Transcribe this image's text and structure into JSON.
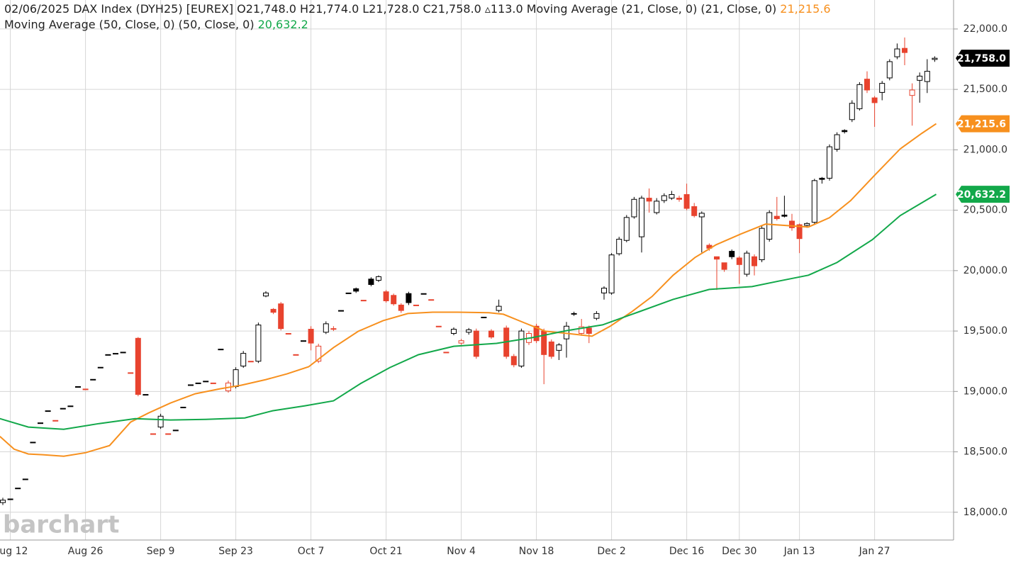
{
  "chart_data": {
    "type": "candlestick",
    "header": {
      "title": "02/06/2025 DAX Index (DYH25) [EUREX]",
      "open": "O21,748.0",
      "high": "H21,774.0",
      "low": "L21,728.0",
      "close": "C21,758.0",
      "change": "▵113.0"
    },
    "last_price_label": "21,758.0",
    "watermark": "barchart",
    "categories": [
      null,
      "Aug 12",
      null,
      null,
      null,
      null,
      null,
      null,
      null,
      null,
      null,
      "Aug 26",
      null,
      null,
      null,
      null,
      null,
      null,
      null,
      null,
      null,
      "Sep 9",
      null,
      null,
      null,
      null,
      null,
      null,
      null,
      null,
      null,
      "Sep 23",
      null,
      null,
      null,
      null,
      null,
      null,
      null,
      null,
      null,
      "Oct 7",
      null,
      null,
      null,
      null,
      null,
      null,
      null,
      null,
      null,
      "Oct 21",
      null,
      null,
      null,
      null,
      null,
      null,
      null,
      null,
      null,
      "Nov 4",
      null,
      null,
      null,
      null,
      null,
      null,
      null,
      null,
      null,
      "Nov 18",
      null,
      null,
      null,
      null,
      null,
      null,
      null,
      null,
      null,
      "Dec 2",
      null,
      null,
      null,
      null,
      null,
      null,
      null,
      null,
      null,
      "Dec 16",
      null,
      null,
      null,
      null,
      null,
      null,
      "Dec 30",
      null,
      null,
      null,
      null,
      null,
      null,
      null,
      "Jan 13",
      null,
      null,
      null,
      null,
      null,
      null,
      null,
      null,
      null,
      "Jan 27",
      null,
      null,
      null,
      null,
      null,
      null,
      null,
      null
    ],
    "open": [
      18080,
      18110,
      18200,
      18275,
      18580,
      18740,
      18840,
      18760,
      18860,
      18880,
      19040,
      19020,
      19100,
      19200,
      19305,
      19315,
      19325,
      19155,
      19440,
      18975,
      18650,
      18705,
      18650,
      18680,
      18870,
      19055,
      19070,
      19085,
      19070,
      19350,
      19005,
      19040,
      19210,
      19250,
      19250,
      19790,
      19680,
      19725,
      19480,
      19305,
      19420,
      19515,
      19250,
      19490,
      19520,
      19670,
      19815,
      19850,
      19755,
      19930,
      19920,
      19825,
      19795,
      19715,
      19810,
      19715,
      19810,
      19760,
      19540,
      19325,
      19480,
      19400,
      19490,
      19500,
      19615,
      19500,
      19670,
      19525,
      19290,
      19210,
      19405,
      19540,
      19500,
      19410,
      19340,
      19435,
      19645,
      19480,
      19525,
      19605,
      19815,
      19815,
      20140,
      20250,
      20445,
      20280,
      20600,
      20480,
      20580,
      20600,
      20600,
      20630,
      20530,
      20445,
      20210,
      20115,
      20065,
      20160,
      20105,
      19970,
      20115,
      20090,
      20260,
      20450,
      20460,
      20410,
      20380,
      20375,
      20400,
      20765,
      20765,
      21005,
      21160,
      21250,
      21340,
      21585,
      21430,
      21475,
      21595,
      21770,
      21840,
      21450,
      21575,
      21565,
      21748
    ],
    "high": [
      18120,
      18110,
      18200,
      18275,
      18580,
      18740,
      18840,
      18760,
      18860,
      18880,
      19040,
      19020,
      19100,
      19200,
      19305,
      19315,
      19325,
      19155,
      19450,
      18975,
      18650,
      18815,
      18650,
      18680,
      18870,
      19055,
      19070,
      19085,
      19070,
      19350,
      19090,
      19200,
      19335,
      19250,
      19570,
      19830,
      19690,
      19740,
      19480,
      19305,
      19420,
      19540,
      19395,
      19580,
      19540,
      19670,
      19815,
      19860,
      19755,
      19945,
      19960,
      19840,
      19810,
      19730,
      19825,
      19715,
      19810,
      19760,
      19540,
      19325,
      19530,
      19435,
      19525,
      19520,
      19615,
      19515,
      19760,
      19545,
      19310,
      19520,
      19500,
      19560,
      19520,
      19430,
      19400,
      19575,
      19660,
      19600,
      19545,
      19665,
      19870,
      20145,
      20280,
      20460,
      20610,
      20620,
      20680,
      20600,
      20640,
      20660,
      20620,
      20720,
      20560,
      20490,
      20225,
      20110,
      20030,
      20175,
      20120,
      20165,
      20135,
      20370,
      20500,
      20610,
      20620,
      20470,
      20390,
      20400,
      20760,
      20775,
      21045,
      21145,
      21170,
      21410,
      21560,
      21650,
      21445,
      21570,
      21750,
      21880,
      21930,
      21550,
      21640,
      21750,
      21774
    ],
    "low": [
      18060,
      18110,
      18200,
      18275,
      18580,
      18740,
      18840,
      18760,
      18860,
      18880,
      19040,
      19020,
      19100,
      19200,
      19305,
      19315,
      19325,
      19155,
      18960,
      18975,
      18650,
      18690,
      18650,
      18680,
      18870,
      19055,
      19070,
      19085,
      19070,
      19350,
      18990,
      19025,
      19195,
      19250,
      19235,
      19780,
      19640,
      19505,
      19480,
      19305,
      19420,
      19340,
      19235,
      19475,
      19500,
      19670,
      19815,
      19815,
      19755,
      19870,
      19905,
      19735,
      19710,
      19650,
      19715,
      19715,
      19810,
      19760,
      19540,
      19325,
      19465,
      19385,
      19470,
      19270,
      19615,
      19435,
      19655,
      19270,
      19200,
      19195,
      19385,
      19400,
      19060,
      19270,
      19260,
      19280,
      19625,
      19460,
      19400,
      19590,
      19760,
      19800,
      20125,
      20235,
      20430,
      20150,
      20480,
      20465,
      20560,
      20585,
      20570,
      20500,
      20440,
      20150,
      20165,
      19840,
      19990,
      20095,
      19890,
      19950,
      19960,
      20070,
      20240,
      20415,
      20440,
      20330,
      20145,
      20355,
      20385,
      20720,
      20745,
      20985,
      21135,
      21230,
      21325,
      21470,
      21190,
      21410,
      21575,
      21750,
      21700,
      21200,
      21390,
      21470,
      21728
    ],
    "close": [
      18100,
      18110,
      18200,
      18275,
      18580,
      18740,
      18840,
      18760,
      18860,
      18880,
      19040,
      19020,
      19100,
      19200,
      19305,
      19315,
      19325,
      19155,
      18975,
      18975,
      18650,
      18795,
      18650,
      18680,
      18870,
      19055,
      19070,
      19085,
      19070,
      19350,
      19070,
      19180,
      19315,
      19250,
      19550,
      19815,
      19655,
      19520,
      19480,
      19305,
      19420,
      19400,
      19375,
      19560,
      19520,
      19670,
      19815,
      19830,
      19755,
      19885,
      19950,
      19750,
      19725,
      19670,
      19735,
      19715,
      19810,
      19760,
      19540,
      19325,
      19515,
      19420,
      19510,
      19290,
      19615,
      19450,
      19705,
      19290,
      19220,
      19500,
      19480,
      19420,
      19305,
      19290,
      19385,
      19540,
      19645,
      19535,
      19480,
      19645,
      19855,
      20130,
      20260,
      20440,
      20590,
      20600,
      20575,
      20575,
      20620,
      20630,
      20590,
      20515,
      20455,
      20475,
      20185,
      20095,
      20010,
      20115,
      20050,
      20145,
      20040,
      20350,
      20480,
      20430,
      20450,
      20355,
      20265,
      20390,
      20745,
      20755,
      21025,
      21125,
      21150,
      21385,
      21540,
      21495,
      21390,
      21550,
      21730,
      21835,
      21805,
      21495,
      21610,
      21650,
      21758
    ],
    "up_color": "#000000",
    "down_color": "#e8432e",
    "series": [
      {
        "name": "Moving Average (21, Close, 0)",
        "params": "(21, Close, 0)",
        "color": "#f7901e",
        "value_label": "21,215.6",
        "x": [
          -0.4,
          1.5,
          3.4,
          5.3,
          8.1,
          11,
          14.2,
          17,
          19.4,
          22.3,
          25.6,
          28.9,
          31.7,
          35,
          37.8,
          40.7,
          44,
          47.3,
          50.6,
          53.9,
          57.2,
          60.5,
          64.7,
          66.6,
          69.4,
          72.2,
          75.1,
          78.4,
          80.8,
          83.6,
          86.4,
          89.2,
          92.1,
          94.9,
          98.2,
          101.5,
          104.3,
          107.2,
          110,
          112.8,
          116.1,
          119.4,
          122.3,
          124.2
        ],
        "values": [
          18628,
          18522,
          18482,
          18476,
          18464,
          18493,
          18552,
          18746,
          18822,
          18904,
          18981,
          19022,
          19051,
          19098,
          19145,
          19204,
          19363,
          19498,
          19586,
          19645,
          19656,
          19656,
          19651,
          19639,
          19568,
          19498,
          19480,
          19457,
          19539,
          19656,
          19786,
          19962,
          20109,
          20214,
          20303,
          20385,
          20373,
          20361,
          20438,
          20579,
          20796,
          21007,
          21137,
          21215.6
        ]
      },
      {
        "name": "Moving Average (50, Close, 0)",
        "params": "(50, Close, 0)",
        "color": "#12a84a",
        "value_label": "20,632.2",
        "x": [
          -0.4,
          3.4,
          8.1,
          12.8,
          17.6,
          22.3,
          27,
          32.2,
          35.9,
          40.2,
          44,
          47.7,
          51.5,
          55.3,
          60,
          65.7,
          70.4,
          75.1,
          79.8,
          84.5,
          89.2,
          94,
          99.7,
          103.4,
          107.2,
          111,
          115.7,
          119.4,
          124.2
        ],
        "values": [
          18775,
          18705,
          18687,
          18734,
          18775,
          18764,
          18769,
          18781,
          18840,
          18881,
          18922,
          19069,
          19198,
          19304,
          19374,
          19398,
          19445,
          19504,
          19551,
          19656,
          19762,
          19844,
          19868,
          19915,
          19962,
          20067,
          20256,
          20455,
          20632.2
        ]
      }
    ],
    "ylim": [
      17770,
      22240
    ],
    "yticks": [
      {
        "value": 18000,
        "label": "18,000.0"
      },
      {
        "value": 18500,
        "label": "18,500.0"
      },
      {
        "value": 19000,
        "label": "19,000.0"
      },
      {
        "value": 19500,
        "label": "19,500.0"
      },
      {
        "value": 20000,
        "label": "20,000.0"
      },
      {
        "value": 20500,
        "label": "20,500.0"
      },
      {
        "value": 21000,
        "label": "21,000.0"
      },
      {
        "value": 21500,
        "label": "21,500.0"
      },
      {
        "value": 22000,
        "label": "22,000.0"
      }
    ],
    "grid": true
  }
}
